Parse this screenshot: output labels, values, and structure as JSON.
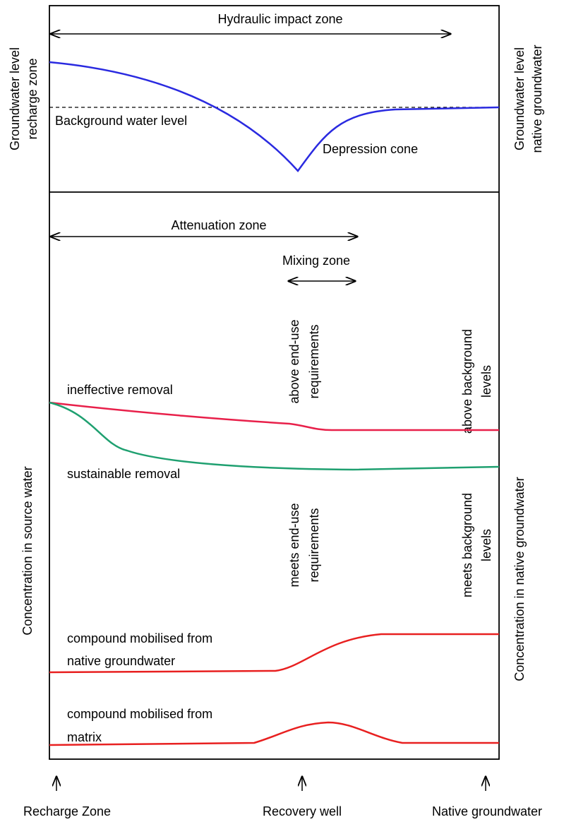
{
  "top_panel": {
    "hydraulic_zone": "Hydraulic impact zone",
    "left_axis": [
      "Groundwater level",
      "recharge zone"
    ],
    "right_axis": [
      "Groundwater level",
      "native groundwater"
    ],
    "background_level": "Background water level",
    "depression_cone": "Depression cone"
  },
  "bottom_panel": {
    "attenuation_zone": "Attenuation zone",
    "mixing_zone": "Mixing zone",
    "above_end_use": [
      "above end-use",
      "requirements"
    ],
    "above_background": [
      "above background",
      "levels"
    ],
    "meets_end_use": [
      "meets end-use",
      "requirements"
    ],
    "meets_background": [
      "meets background",
      "levels"
    ],
    "left_axis": "Concentration in source water",
    "right_axis": "Concentration in native groundwater",
    "curves": {
      "ineffective": "ineffective removal",
      "sustainable": "sustainable removal",
      "native": [
        "compound mobilised from",
        "native groundwater"
      ],
      "matrix": [
        "compound mobilised from",
        "matrix"
      ]
    }
  },
  "locations": [
    "Recharge Zone",
    "Recovery well",
    "Native groundwater"
  ]
}
